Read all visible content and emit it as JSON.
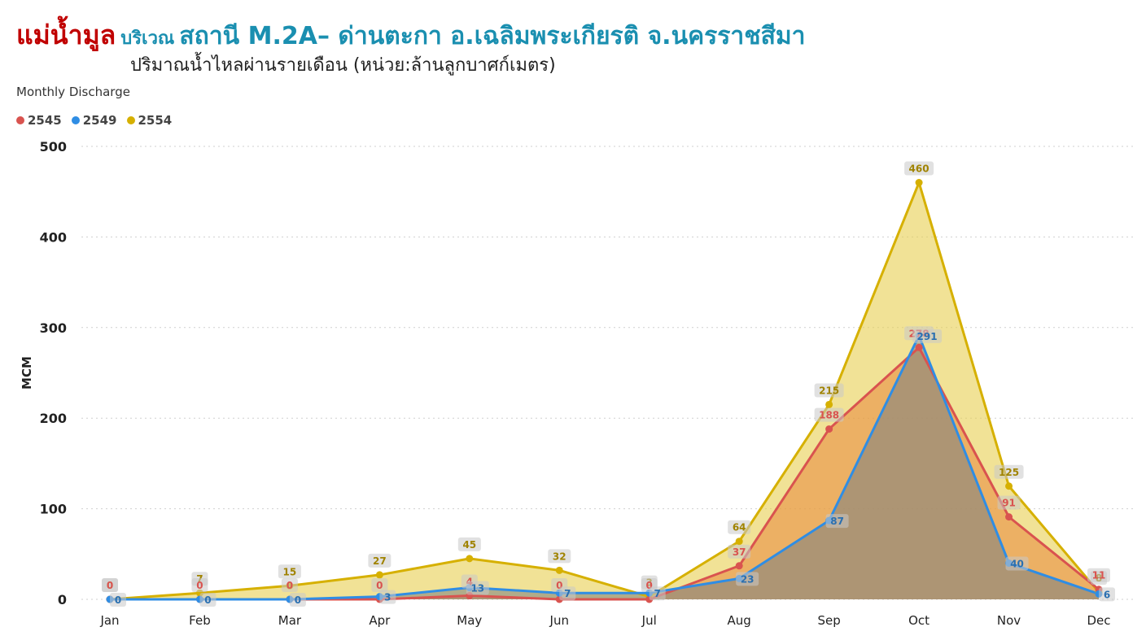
{
  "header": {
    "title_red": "แม่น้ำมูล",
    "title_small": "บริเวณ",
    "title_blue": "สถานี M.2A– ด่านตะกา อ.เฉลิมพระเกียรติ จ.นครราชสีมา",
    "subtitle": "ปริมาณน้ำไหลผ่านรายเดือน (หน่วย:ล้านลูกบาศก์เมตร)"
  },
  "visual_title": "Monthly Discharge",
  "chart_data": {
    "type": "area",
    "categories": [
      "Jan",
      "Feb",
      "Mar",
      "Apr",
      "May",
      "Jun",
      "Jul",
      "Aug",
      "Sep",
      "Oct",
      "Nov",
      "Dec"
    ],
    "ylabel": "MCM",
    "ylim": [
      0,
      500
    ],
    "yticks": [
      0,
      100,
      200,
      300,
      400,
      500
    ],
    "grid": true,
    "legend_position": "top-left",
    "series": [
      {
        "name": "2545",
        "color": "#d9534f",
        "values": [
          0,
          0,
          0,
          0,
          4,
          0,
          0,
          37,
          188,
          278,
          91,
          11
        ]
      },
      {
        "name": "2549",
        "color": "#2f8de4",
        "values": [
          0,
          0,
          0,
          3,
          13,
          7,
          7,
          23,
          87,
          291,
          40,
          6
        ]
      },
      {
        "name": "2554",
        "color": "#d6b000",
        "values": [
          0,
          7,
          15,
          27,
          45,
          32,
          3,
          64,
          215,
          460,
          125,
          8
        ]
      }
    ]
  }
}
